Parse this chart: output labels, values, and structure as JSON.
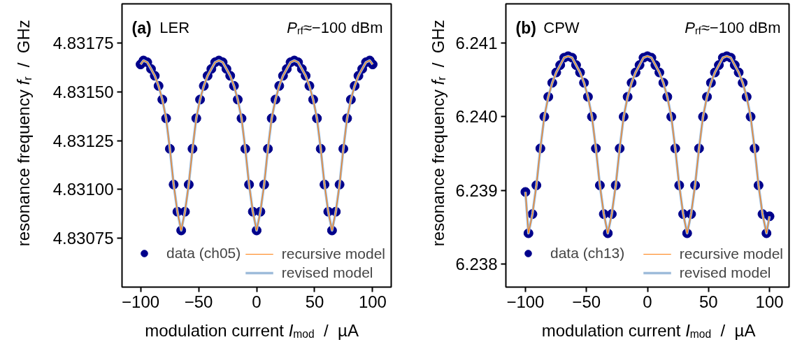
{
  "chart_data": [
    {
      "type": "scatter",
      "annotations": [
        "(a)",
        "LER",
        "P$_{rf}$≈−100 dBm"
      ],
      "xlabel": "modulation current I$_{mod}$  /  µA",
      "ylabel": "resonance frequency f$_{r}$  /  GHz",
      "x": [
        -100,
        -97.5,
        -94.25,
        -91,
        -87.75,
        -84.5,
        -81.25,
        -78,
        -74.75,
        -71.5,
        -68.25,
        -65,
        -61.75,
        -58.5,
        -55.25,
        -52,
        -48.75,
        -45.5,
        -42.25,
        -39,
        -35.75,
        -32.5,
        -29.25,
        -26,
        -22.75,
        -19.5,
        -16.25,
        -13,
        -9.75,
        -6.5,
        -3.25,
        0,
        3.25,
        6.5,
        9.75,
        13,
        16.25,
        19.5,
        22.75,
        26,
        29.25,
        32.5,
        35.75,
        39,
        42.25,
        45.5,
        48.75,
        52,
        55.25,
        58.5,
        61.75,
        65,
        68.25,
        71.5,
        74.75,
        78,
        81.25,
        84.5,
        87.75,
        91,
        94.25,
        97.5,
        100
      ],
      "xlim": [
        -116,
        116
      ],
      "ylim": [
        4.8305,
        4.83195
      ],
      "xticks": [
        -100,
        -50,
        0,
        50,
        100
      ],
      "yticks": [
        4.83075,
        {
          "value": 4.831,
          "label": "4.83100"
        },
        4.83125,
        {
          "value": 4.8315,
          "label": "4.83150"
        },
        4.83175
      ],
      "grid": false,
      "legend": "bottom",
      "series": [
        {
          "name": "data (ch05)",
          "marker": "circle",
          "color": "#00008b",
          "values": [
            4.83164,
            4.83166,
            4.831651,
            4.831617,
            4.831582,
            4.83153,
            4.83146,
            4.831364,
            4.831208,
            4.831025,
            4.830886,
            4.83079,
            4.830886,
            4.831025,
            4.831208,
            4.831364,
            4.83146,
            4.83153,
            4.831582,
            4.831617,
            4.831651,
            4.83166,
            4.831651,
            4.831617,
            4.831582,
            4.83153,
            4.83146,
            4.831364,
            4.831208,
            4.831025,
            4.830886,
            4.83079,
            4.830886,
            4.831025,
            4.831208,
            4.831364,
            4.83146,
            4.83153,
            4.831582,
            4.831617,
            4.831651,
            4.83166,
            4.831651,
            4.831617,
            4.831582,
            4.83153,
            4.83146,
            4.831364,
            4.831208,
            4.831025,
            4.830886,
            4.83079,
            4.830886,
            4.831025,
            4.831208,
            4.831364,
            4.83146,
            4.83153,
            4.831582,
            4.831617,
            4.831651,
            4.83166,
            4.83164
          ]
        },
        {
          "name": "recursive model",
          "type": "line",
          "color": "#ff7f0e",
          "values": [
            4.83164,
            4.83166,
            4.831651,
            4.831617,
            4.831582,
            4.83153,
            4.83146,
            4.831364,
            4.831208,
            4.831025,
            4.830886,
            4.83079,
            4.830886,
            4.831025,
            4.831208,
            4.831364,
            4.83146,
            4.83153,
            4.831582,
            4.831617,
            4.831651,
            4.83166,
            4.831651,
            4.831617,
            4.831582,
            4.83153,
            4.83146,
            4.831364,
            4.831208,
            4.831025,
            4.830886,
            4.83079,
            4.830886,
            4.831025,
            4.831208,
            4.831364,
            4.83146,
            4.83153,
            4.831582,
            4.831617,
            4.831651,
            4.83166,
            4.831651,
            4.831617,
            4.831582,
            4.83153,
            4.83146,
            4.831364,
            4.831208,
            4.831025,
            4.830886,
            4.83079,
            4.830886,
            4.831025,
            4.831208,
            4.831364,
            4.83146,
            4.83153,
            4.831582,
            4.831617,
            4.831651,
            4.83166,
            4.83164
          ]
        },
        {
          "name": "revised model",
          "type": "line",
          "color": "#9ebcda",
          "values": [
            4.83164,
            4.83166,
            4.831651,
            4.831617,
            4.831582,
            4.83153,
            4.83146,
            4.831364,
            4.831208,
            4.831025,
            4.830886,
            4.83079,
            4.830886,
            4.831025,
            4.831208,
            4.831364,
            4.83146,
            4.83153,
            4.831582,
            4.831617,
            4.831651,
            4.83166,
            4.831651,
            4.831617,
            4.831582,
            4.83153,
            4.83146,
            4.831364,
            4.831208,
            4.831025,
            4.830886,
            4.83079,
            4.830886,
            4.831025,
            4.831208,
            4.831364,
            4.83146,
            4.83153,
            4.831582,
            4.831617,
            4.831651,
            4.83166,
            4.831651,
            4.831617,
            4.831582,
            4.83153,
            4.83146,
            4.831364,
            4.831208,
            4.831025,
            4.830886,
            4.83079,
            4.830886,
            4.831025,
            4.831208,
            4.831364,
            4.83146,
            4.83153,
            4.831582,
            4.831617,
            4.831651,
            4.83166,
            4.83164
          ]
        }
      ]
    },
    {
      "type": "scatter",
      "annotations": [
        "(b)",
        "CPW",
        "P$_{rf}$≈−100 dBm"
      ],
      "xlabel": "modulation current I$_{mod}$  /  µA",
      "ylabel": "resonance frequency f$_{r}$  /  GHz",
      "x": [
        -100,
        -97.5,
        -94.25,
        -91,
        -87.75,
        -84.5,
        -81.25,
        -78,
        -74.75,
        -71.5,
        -68.25,
        -65,
        -61.75,
        -58.5,
        -55.25,
        -52,
        -48.75,
        -45.5,
        -42.25,
        -39,
        -35.75,
        -32.5,
        -29.25,
        -26,
        -22.75,
        -19.5,
        -16.25,
        -13,
        -9.75,
        -6.5,
        -3.25,
        0,
        3.25,
        6.5,
        9.75,
        13,
        16.25,
        19.5,
        22.75,
        26,
        29.25,
        32.5,
        35.75,
        39,
        42.25,
        45.5,
        48.75,
        52,
        55.25,
        58.5,
        61.75,
        65,
        68.25,
        71.5,
        74.75,
        78,
        81.25,
        84.5,
        87.75,
        91,
        94.25,
        97.5,
        100
      ],
      "xlim": [
        -116,
        116
      ],
      "ylim": [
        6.23769,
        6.24153
      ],
      "xticks": [
        -100,
        -50,
        0,
        50,
        100
      ],
      "yticks": [
        6.238,
        6.239,
        {
          "value": 6.24,
          "label": "6.240"
        },
        6.241
      ],
      "grid": false,
      "legend": "bottom",
      "series": [
        {
          "name": "data (ch13)",
          "marker": "circle",
          "color": "#00008b",
          "values": [
            6.23898,
            6.23842,
            6.23868,
            6.23907,
            6.23957,
            6.24,
            6.24027,
            6.24046,
            6.2406,
            6.2407,
            6.2408,
            6.24082,
            6.2408,
            6.2407,
            6.2406,
            6.24046,
            6.24027,
            6.24,
            6.23957,
            6.23907,
            6.23868,
            6.23842,
            6.23868,
            6.23907,
            6.23957,
            6.24,
            6.24027,
            6.24046,
            6.2406,
            6.2407,
            6.2408,
            6.24082,
            6.2408,
            6.2407,
            6.2406,
            6.24046,
            6.24027,
            6.24,
            6.23957,
            6.23907,
            6.23868,
            6.23842,
            6.23868,
            6.23907,
            6.23957,
            6.24,
            6.24027,
            6.24046,
            6.2406,
            6.2407,
            6.2408,
            6.24082,
            6.2408,
            6.2407,
            6.2406,
            6.24046,
            6.24027,
            6.24,
            6.23957,
            6.23907,
            6.23868,
            6.23842,
            6.23865
          ]
        },
        {
          "name": "recursive model",
          "type": "line",
          "color": "#ff7f0e",
          "values": [
            6.23898,
            6.23842,
            6.23868,
            6.23907,
            6.23957,
            6.24,
            6.24027,
            6.24046,
            6.2406,
            6.2407,
            6.2408,
            6.24082,
            6.2408,
            6.2407,
            6.2406,
            6.24046,
            6.24027,
            6.24,
            6.23957,
            6.23907,
            6.23868,
            6.23842,
            6.23868,
            6.23907,
            6.23957,
            6.24,
            6.24027,
            6.24046,
            6.2406,
            6.2407,
            6.2408,
            6.24082,
            6.2408,
            6.2407,
            6.2406,
            6.24046,
            6.24027,
            6.24,
            6.23957,
            6.23907,
            6.23868,
            6.23842,
            6.23868,
            6.23907,
            6.23957,
            6.24,
            6.24027,
            6.24046,
            6.2406,
            6.2407,
            6.2408,
            6.24082,
            6.2408,
            6.2407,
            6.2406,
            6.24046,
            6.24027,
            6.24,
            6.23957,
            6.23907,
            6.23868,
            6.23842,
            6.23865
          ]
        },
        {
          "name": "revised model",
          "type": "line",
          "color": "#9ebcda",
          "values": [
            6.23898,
            6.23842,
            6.23868,
            6.23907,
            6.23957,
            6.24,
            6.24027,
            6.24046,
            6.2406,
            6.2407,
            6.2408,
            6.24082,
            6.2408,
            6.2407,
            6.2406,
            6.24046,
            6.24027,
            6.24,
            6.23957,
            6.23907,
            6.23868,
            6.23842,
            6.23868,
            6.23907,
            6.23957,
            6.24,
            6.24027,
            6.24046,
            6.2406,
            6.2407,
            6.2408,
            6.24082,
            6.2408,
            6.2407,
            6.2406,
            6.24046,
            6.24027,
            6.24,
            6.23957,
            6.23907,
            6.23868,
            6.23842,
            6.23868,
            6.23907,
            6.23957,
            6.24,
            6.24027,
            6.24046,
            6.2406,
            6.2407,
            6.2408,
            6.24082,
            6.2408,
            6.2407,
            6.2406,
            6.24046,
            6.24027,
            6.24,
            6.23957,
            6.23907,
            6.23868,
            6.23842,
            6.23865
          ]
        }
      ]
    }
  ]
}
